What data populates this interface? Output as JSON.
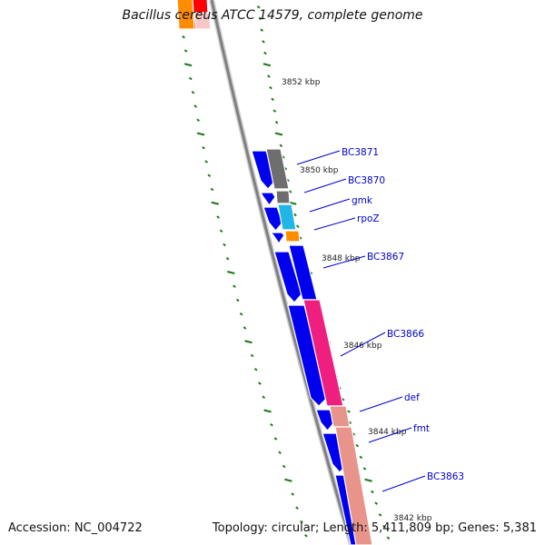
{
  "title": "Bacillus cereus ATCC 14579, complete genome",
  "footer": {
    "accession": "Accession: NC_004722",
    "summary": "Topology: circular; Length: 5,411,809 bp; Genes: 5,381"
  },
  "colors": {
    "backbone": "#808080",
    "tick": "#1a7a1a",
    "cds": "#0000ee",
    "label": "#0000cc",
    "cog_gray": "#6e6e6e",
    "cog_cyan": "#22b5e8",
    "cog_orange": "#ff8c00",
    "cog_pink": "#ee1f7f",
    "cog_salmon": "#e8948a",
    "cog_red": "#ff0000"
  },
  "kb_labels": [
    "3852 kbp",
    "3850 kbp",
    "3848 kbp",
    "3846 kbp",
    "3844 kbp",
    "3842 kbp"
  ],
  "genes": [
    "BC3871",
    "BC3870",
    "gmk",
    "rpoZ",
    "BC3867",
    "BC3866",
    "def",
    "fmt",
    "BC3863"
  ]
}
